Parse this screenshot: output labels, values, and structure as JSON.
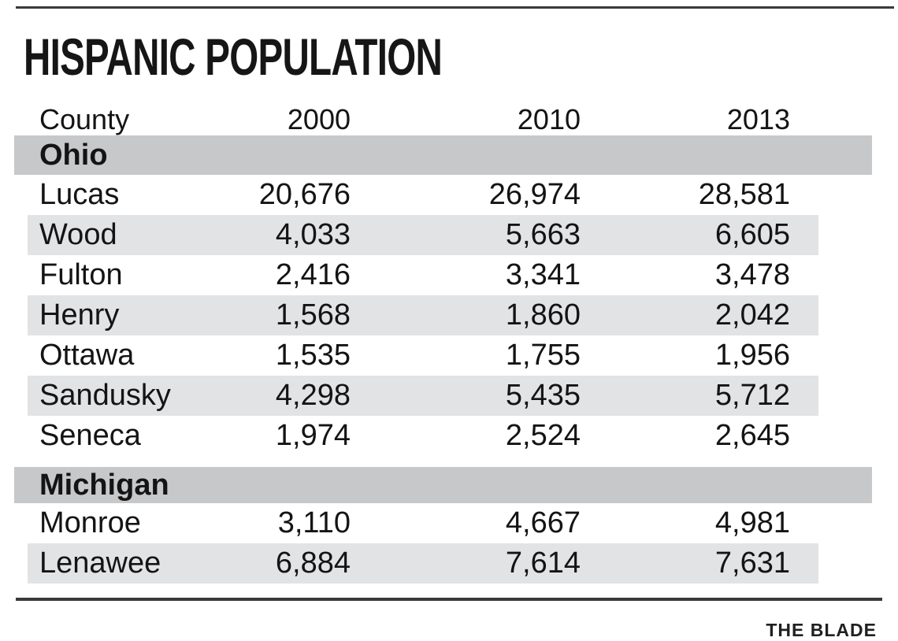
{
  "title": "HISPANIC POPULATION",
  "credit": "THE BLADE",
  "colors": {
    "section_band": "#c6c8ca",
    "stripe_band": "#e2e3e4",
    "text": "#141414",
    "rule": "#3a3a3a"
  },
  "chart_data": {
    "type": "table",
    "title": "HISPANIC POPULATION",
    "columns": [
      "County",
      "2000",
      "2010",
      "2013"
    ],
    "sections": [
      {
        "name": "Ohio",
        "rows": [
          {
            "county": "Lucas",
            "y2000": "20,676",
            "y2010": "26,974",
            "y2013": "28,581"
          },
          {
            "county": "Wood",
            "y2000": "4,033",
            "y2010": "5,663",
            "y2013": "6,605"
          },
          {
            "county": "Fulton",
            "y2000": "2,416",
            "y2010": "3,341",
            "y2013": "3,478"
          },
          {
            "county": "Henry",
            "y2000": "1,568",
            "y2010": "1,860",
            "y2013": "2,042"
          },
          {
            "county": "Ottawa",
            "y2000": "1,535",
            "y2010": "1,755",
            "y2013": "1,956"
          },
          {
            "county": "Sandusky",
            "y2000": "4,298",
            "y2010": "5,435",
            "y2013": "5,712"
          },
          {
            "county": "Seneca",
            "y2000": "1,974",
            "y2010": "2,524",
            "y2013": "2,645"
          }
        ]
      },
      {
        "name": "Michigan",
        "rows": [
          {
            "county": "Monroe",
            "y2000": "3,110",
            "y2010": "4,667",
            "y2013": "4,981"
          },
          {
            "county": "Lenawee",
            "y2000": "6,884",
            "y2010": "7,614",
            "y2013": "7,631"
          }
        ]
      }
    ],
    "layout": {
      "grid": false,
      "row_striping": "alternate light gray",
      "section_bands": "medium gray full-width"
    }
  }
}
